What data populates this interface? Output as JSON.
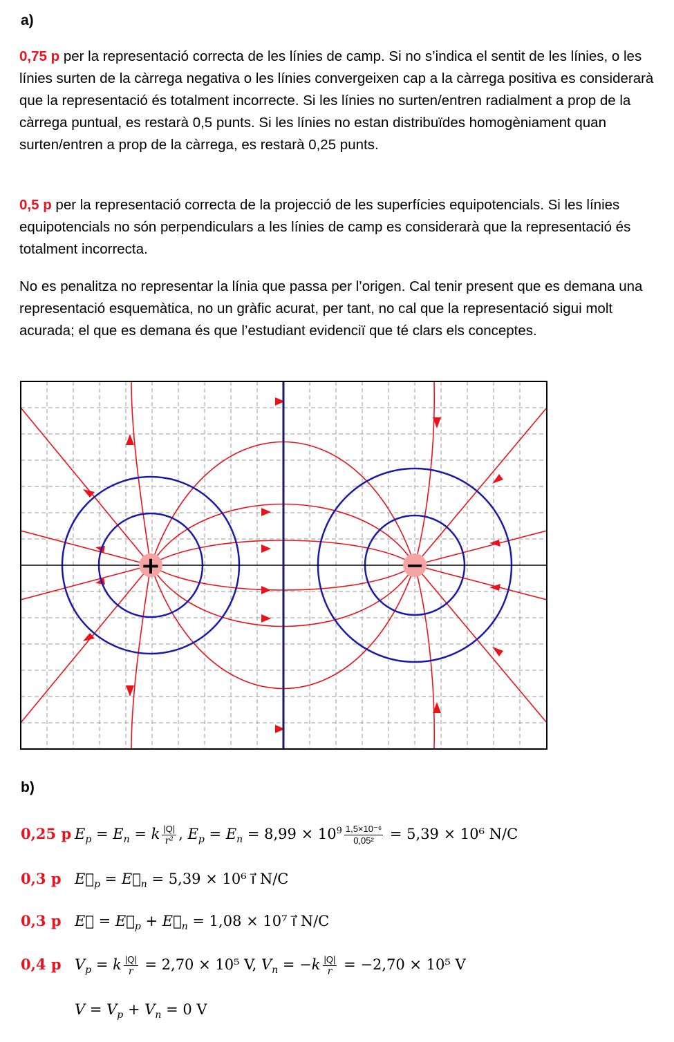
{
  "section_a": {
    "label": "a)",
    "p1_points": "0,75 p",
    "p1_text": " per la representació correcta de les línies de camp. Si no s’indica el sentit de les línies, o les línies surten de la càrrega negativa o les línies convergeixen cap a la càrrega positiva es considerarà que la representació és totalment incorrecte. Si les línies no surten/entren radialment a prop de la càrrega puntual, es restarà 0,5 punts. Si les línies no estan distribuïdes homogèniament quan surten/entren a prop de la càrrega, es restarà 0,25 punts.",
    "p2_points": "0,5 p",
    "p2_text": "  per la representació correcta de la projecció de les superfícies equipotencials. Si les línies equipotencials no són perpendiculars a les línies de camp es considerarà que la representació és totalment incorrecta.",
    "p3_text": "No es penalitza no representar la línia que passa per l’origen. Cal tenir present que es demana una representació esquemàtica, no un gràfic acurat, per tant, no cal que la representació sigui molt acurada; el que es demana és que l’estudiant evidenciï que té clars els conceptes."
  },
  "figure": {
    "positive_sign": "+",
    "negative_sign": "−",
    "colors": {
      "field_line": "#e8131d",
      "equipotential": "#1a1aa6",
      "charge": "#f5a3a3",
      "grid": "#9a9a9a"
    }
  },
  "section_b": {
    "label": "b)",
    "eq1": {
      "points": "0,25 p",
      "num1": "|Q|",
      "num2": "1,5×10⁻⁶",
      "den2": "0,05²",
      "result": "= 5,39 × 10⁶ N/C"
    },
    "eq2": {
      "points": "0,3 p",
      "result": "= 5,39 × 10⁶ ı⃗ N/C"
    },
    "eq3": {
      "points": "0,3 p",
      "result": "= 1,08 × 10⁷ ı⃗ N/C"
    },
    "eq4": {
      "points": "0,4 p",
      "num": "|Q|",
      "r1": "= 2,70 × 10⁵ V,",
      "r2": "= −2,70 × 10⁵ V"
    },
    "eq5": {
      "result": "= 0 V"
    }
  }
}
